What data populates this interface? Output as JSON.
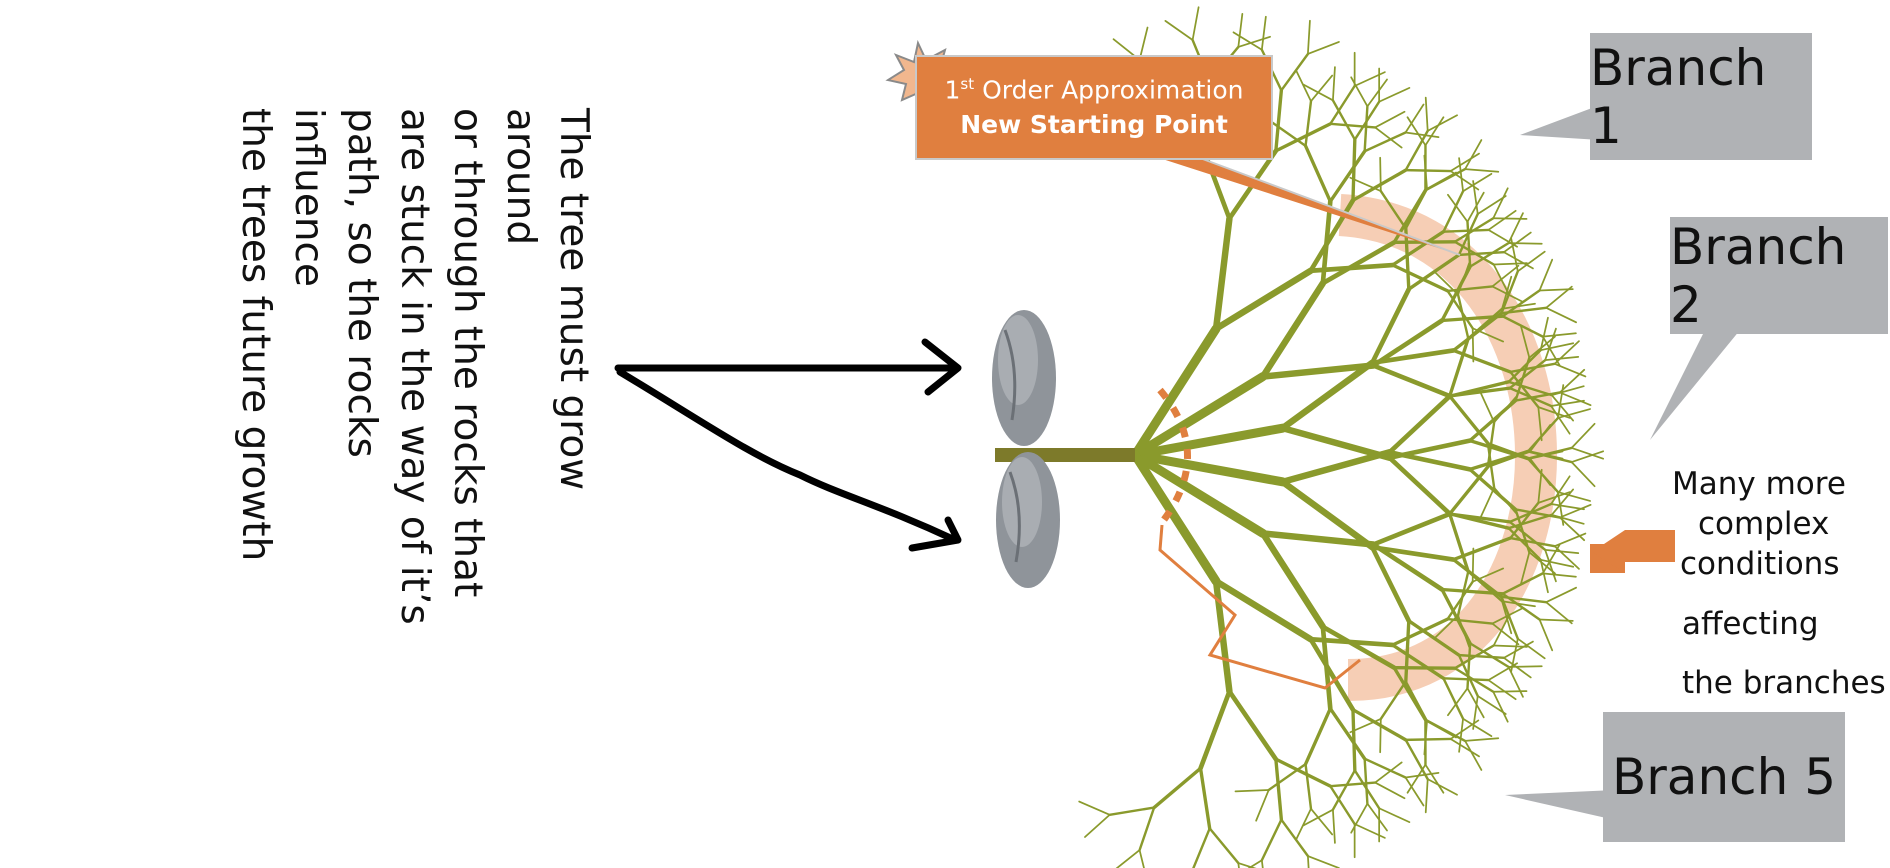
{
  "note": {
    "text": "The tree must grow around\nor through the rocks that\nare stuck in the way of it’s\npath, so the rocks influence\nthe trees future growth"
  },
  "callouts": {
    "branch1": "Branch 1",
    "branch2": "Branch 2",
    "branch5": "Branch 5"
  },
  "approximation": {
    "ordinal_number": "1",
    "ordinal_suffix": "st",
    "line1_rest": " Order Approximation",
    "line2": "New Starting Point"
  },
  "conditions_lines": [
    "Many more",
    "complex",
    "conditions",
    "affecting",
    "the branches"
  ],
  "colors": {
    "tree": "#8a9a2c",
    "trunk": "#7d7a2a",
    "orange": "#e07f3f",
    "highlight_band": "#f5c9ad",
    "callout_gray": "#b0b2b5",
    "rock": "#8f949a"
  },
  "icons": [
    "starburst-icon",
    "rock-icon",
    "arrow-left-icon"
  ]
}
